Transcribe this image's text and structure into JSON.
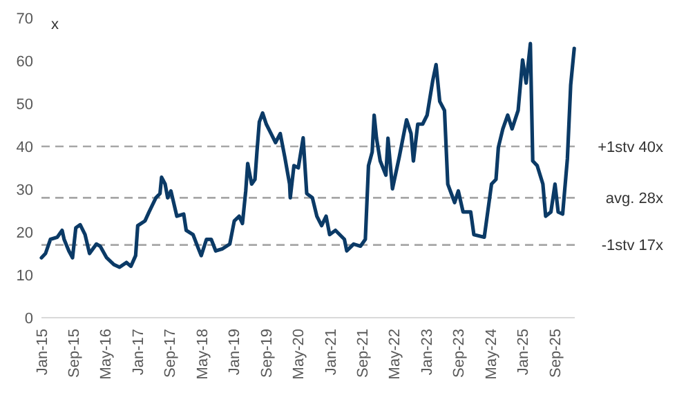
{
  "chart_data": {
    "type": "line",
    "ylabel": "x",
    "xlim": [
      "2015-01-01",
      "2026-02-01"
    ],
    "ylim": [
      0,
      70
    ],
    "yticks": [
      0,
      10,
      20,
      30,
      40,
      50,
      60,
      70
    ],
    "xticks": [
      {
        "value": "2015-01-01",
        "label": "Jan-15"
      },
      {
        "value": "2015-09-01",
        "label": "Sep-15"
      },
      {
        "value": "2016-05-01",
        "label": "May-16"
      },
      {
        "value": "2017-01-01",
        "label": "Jan-17"
      },
      {
        "value": "2017-09-01",
        "label": "Sep-17"
      },
      {
        "value": "2018-05-01",
        "label": "May-18"
      },
      {
        "value": "2019-01-01",
        "label": "Jan-19"
      },
      {
        "value": "2019-09-01",
        "label": "Sep-19"
      },
      {
        "value": "2020-05-01",
        "label": "May-20"
      },
      {
        "value": "2021-01-01",
        "label": "Jan-21"
      },
      {
        "value": "2021-09-01",
        "label": "Sep-21"
      },
      {
        "value": "2022-05-01",
        "label": "May-22"
      },
      {
        "value": "2023-01-01",
        "label": "Jan-23"
      },
      {
        "value": "2023-09-01",
        "label": "Sep-23"
      },
      {
        "value": "2024-05-01",
        "label": "May-24"
      },
      {
        "value": "2025-01-01",
        "label": "Jan-25"
      },
      {
        "value": "2025-09-01",
        "label": "Sep-25"
      }
    ],
    "grid": false,
    "marker": "none",
    "line_style": "solid",
    "x": [
      "2015-01-01",
      "2015-02-01",
      "2015-03-10",
      "2015-05-01",
      "2015-06-07",
      "2015-06-22",
      "2015-07-28",
      "2015-08-25",
      "2015-09-19",
      "2015-10-22",
      "2015-11-28",
      "2016-01-01",
      "2016-02-22",
      "2016-03-22",
      "2016-05-10",
      "2016-07-04",
      "2016-08-16",
      "2016-10-07",
      "2016-11-10",
      "2016-12-16",
      "2017-01-01",
      "2017-02-25",
      "2017-03-28",
      "2017-05-19",
      "2017-06-19",
      "2017-07-01",
      "2017-07-28",
      "2017-08-16",
      "2017-09-10",
      "2017-10-25",
      "2017-12-16",
      "2018-01-04",
      "2018-02-25",
      "2018-04-07",
      "2018-04-28",
      "2018-06-07",
      "2018-07-13",
      "2018-08-16",
      "2018-10-07",
      "2018-12-01",
      "2019-01-04",
      "2019-02-10",
      "2019-03-07",
      "2019-04-01",
      "2019-04-16",
      "2019-05-16",
      "2019-06-10",
      "2019-06-25",
      "2019-07-13",
      "2019-08-07",
      "2019-09-04",
      "2019-10-10",
      "2019-11-13",
      "2019-12-19",
      "2020-01-22",
      "2020-02-28",
      "2020-03-04",
      "2020-04-01",
      "2020-05-04",
      "2020-06-10",
      "2020-07-07",
      "2020-08-19",
      "2020-09-22",
      "2020-10-28",
      "2020-12-01",
      "2020-12-28",
      "2021-02-10",
      "2021-04-19",
      "2021-05-07",
      "2021-06-28",
      "2021-08-19",
      "2021-09-25",
      "2021-10-19",
      "2021-11-16",
      "2021-12-01",
      "2021-12-19",
      "2022-01-16",
      "2022-02-28",
      "2022-03-16",
      "2022-04-19",
      "2022-06-10",
      "2022-08-04",
      "2022-09-07",
      "2022-09-25",
      "2022-10-28",
      "2022-12-04",
      "2023-01-07",
      "2023-02-19",
      "2023-03-16",
      "2023-04-13",
      "2023-05-19",
      "2023-06-13",
      "2023-08-04",
      "2023-09-01",
      "2023-10-07",
      "2023-12-04",
      "2023-12-28",
      "2024-03-16",
      "2024-05-10",
      "2024-06-13",
      "2024-07-01",
      "2024-08-04",
      "2024-09-10",
      "2024-10-13",
      "2024-11-28",
      "2025-01-01",
      "2025-01-28",
      "2025-03-01",
      "2025-03-19",
      "2025-04-22",
      "2025-06-04",
      "2025-06-25",
      "2025-08-04",
      "2025-09-04",
      "2025-09-28",
      "2025-11-01",
      "2025-12-07",
      "2026-01-01",
      "2026-01-28"
    ],
    "series": [
      {
        "color": "#0b3a66",
        "values": [
          14,
          15,
          18.3,
          18.8,
          20.4,
          18.3,
          15.6,
          14,
          21,
          21.7,
          19.4,
          15,
          17.2,
          16.7,
          14,
          12.4,
          11.8,
          12.9,
          12,
          14.5,
          21.5,
          22.6,
          24.7,
          28,
          29,
          32.8,
          31.2,
          28,
          29.6,
          23.7,
          24.2,
          20.4,
          19.4,
          16.1,
          14.5,
          18.3,
          18.3,
          15.6,
          16.1,
          17.2,
          22.6,
          23.7,
          22,
          29.6,
          36,
          31.2,
          32.3,
          38.7,
          45.7,
          47.8,
          45.2,
          43,
          40.9,
          43,
          37.6,
          31.2,
          28,
          35.5,
          35,
          42,
          29,
          28,
          23.7,
          21.5,
          23.7,
          19.4,
          20.4,
          18.3,
          15.6,
          17.2,
          16.7,
          18.3,
          35.5,
          38.7,
          47.3,
          41.9,
          36.6,
          33.3,
          41.9,
          30.1,
          37.6,
          46.2,
          43,
          36.6,
          45.2,
          45.2,
          47.3,
          55.4,
          59.1,
          50.5,
          48.4,
          31.2,
          26.9,
          29.6,
          24.7,
          24.7,
          19.4,
          18.8,
          31.2,
          32.3,
          39.8,
          44.1,
          47.3,
          44.1,
          48.4,
          60.2,
          54.8,
          64,
          36.6,
          35.5,
          31.2,
          23.7,
          24.7,
          31.2,
          24.7,
          24.2,
          37.1,
          54.3,
          62.9
        ]
      }
    ],
    "ref_lines": [
      {
        "axis": "y",
        "value": 40,
        "label": "+1stv 40x",
        "color": "#a6a6a6",
        "line_style": "dashed"
      },
      {
        "axis": "y",
        "value": 28,
        "label": "avg. 28x",
        "color": "#a6a6a6",
        "line_style": "dashed"
      },
      {
        "axis": "y",
        "value": 17,
        "label": "-1stv 17x",
        "color": "#a6a6a6",
        "line_style": "dashed"
      }
    ]
  }
}
